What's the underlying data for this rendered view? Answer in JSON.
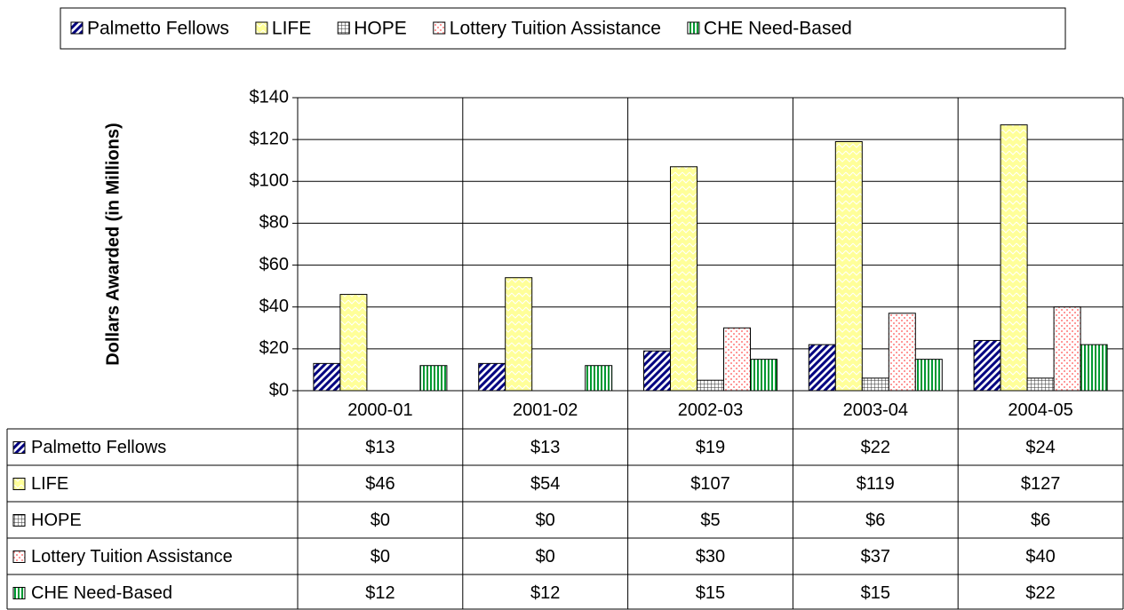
{
  "chart_data": {
    "type": "bar",
    "y_label": "Dollars Awarded (in Millions)",
    "categories": [
      "2000-01",
      "2001-02",
      "2002-03",
      "2003-04",
      "2004-05"
    ],
    "series": [
      {
        "name": "Palmetto Fellows",
        "color": "#000080",
        "values": [
          13,
          13,
          19,
          22,
          24
        ],
        "value_labels": [
          "$13",
          "$13",
          "$19",
          "$22",
          "$24"
        ]
      },
      {
        "name": "LIFE",
        "color": "#ffff99",
        "values": [
          46,
          54,
          107,
          119,
          127
        ],
        "value_labels": [
          "$46",
          "$54",
          "$107",
          "$119",
          "$127"
        ]
      },
      {
        "name": "HOPE",
        "color": "#333333",
        "values": [
          0,
          0,
          5,
          6,
          6
        ],
        "value_labels": [
          "$0",
          "$0",
          "$5",
          "$6",
          "$6"
        ]
      },
      {
        "name": "Lottery Tuition Assistance",
        "color": "#ff9999",
        "values": [
          0,
          0,
          30,
          37,
          40
        ],
        "value_labels": [
          "$0",
          "$0",
          "$30",
          "$37",
          "$40"
        ]
      },
      {
        "name": "CHE Need-Based",
        "color": "#009933",
        "values": [
          12,
          12,
          15,
          15,
          22
        ],
        "value_labels": [
          "$12",
          "$12",
          "$15",
          "$15",
          "$22"
        ]
      }
    ],
    "ylim": [
      0,
      140
    ],
    "yticks": [
      {
        "value": 0,
        "label": "$0"
      },
      {
        "value": 20,
        "label": "$20"
      },
      {
        "value": 40,
        "label": "$40"
      },
      {
        "value": 60,
        "label": "$60"
      },
      {
        "value": 80,
        "label": "$80"
      },
      {
        "value": 100,
        "label": "$100"
      },
      {
        "value": 120,
        "label": "$120"
      },
      {
        "value": 140,
        "label": "$140"
      }
    ],
    "grid": true,
    "legend": "top"
  }
}
